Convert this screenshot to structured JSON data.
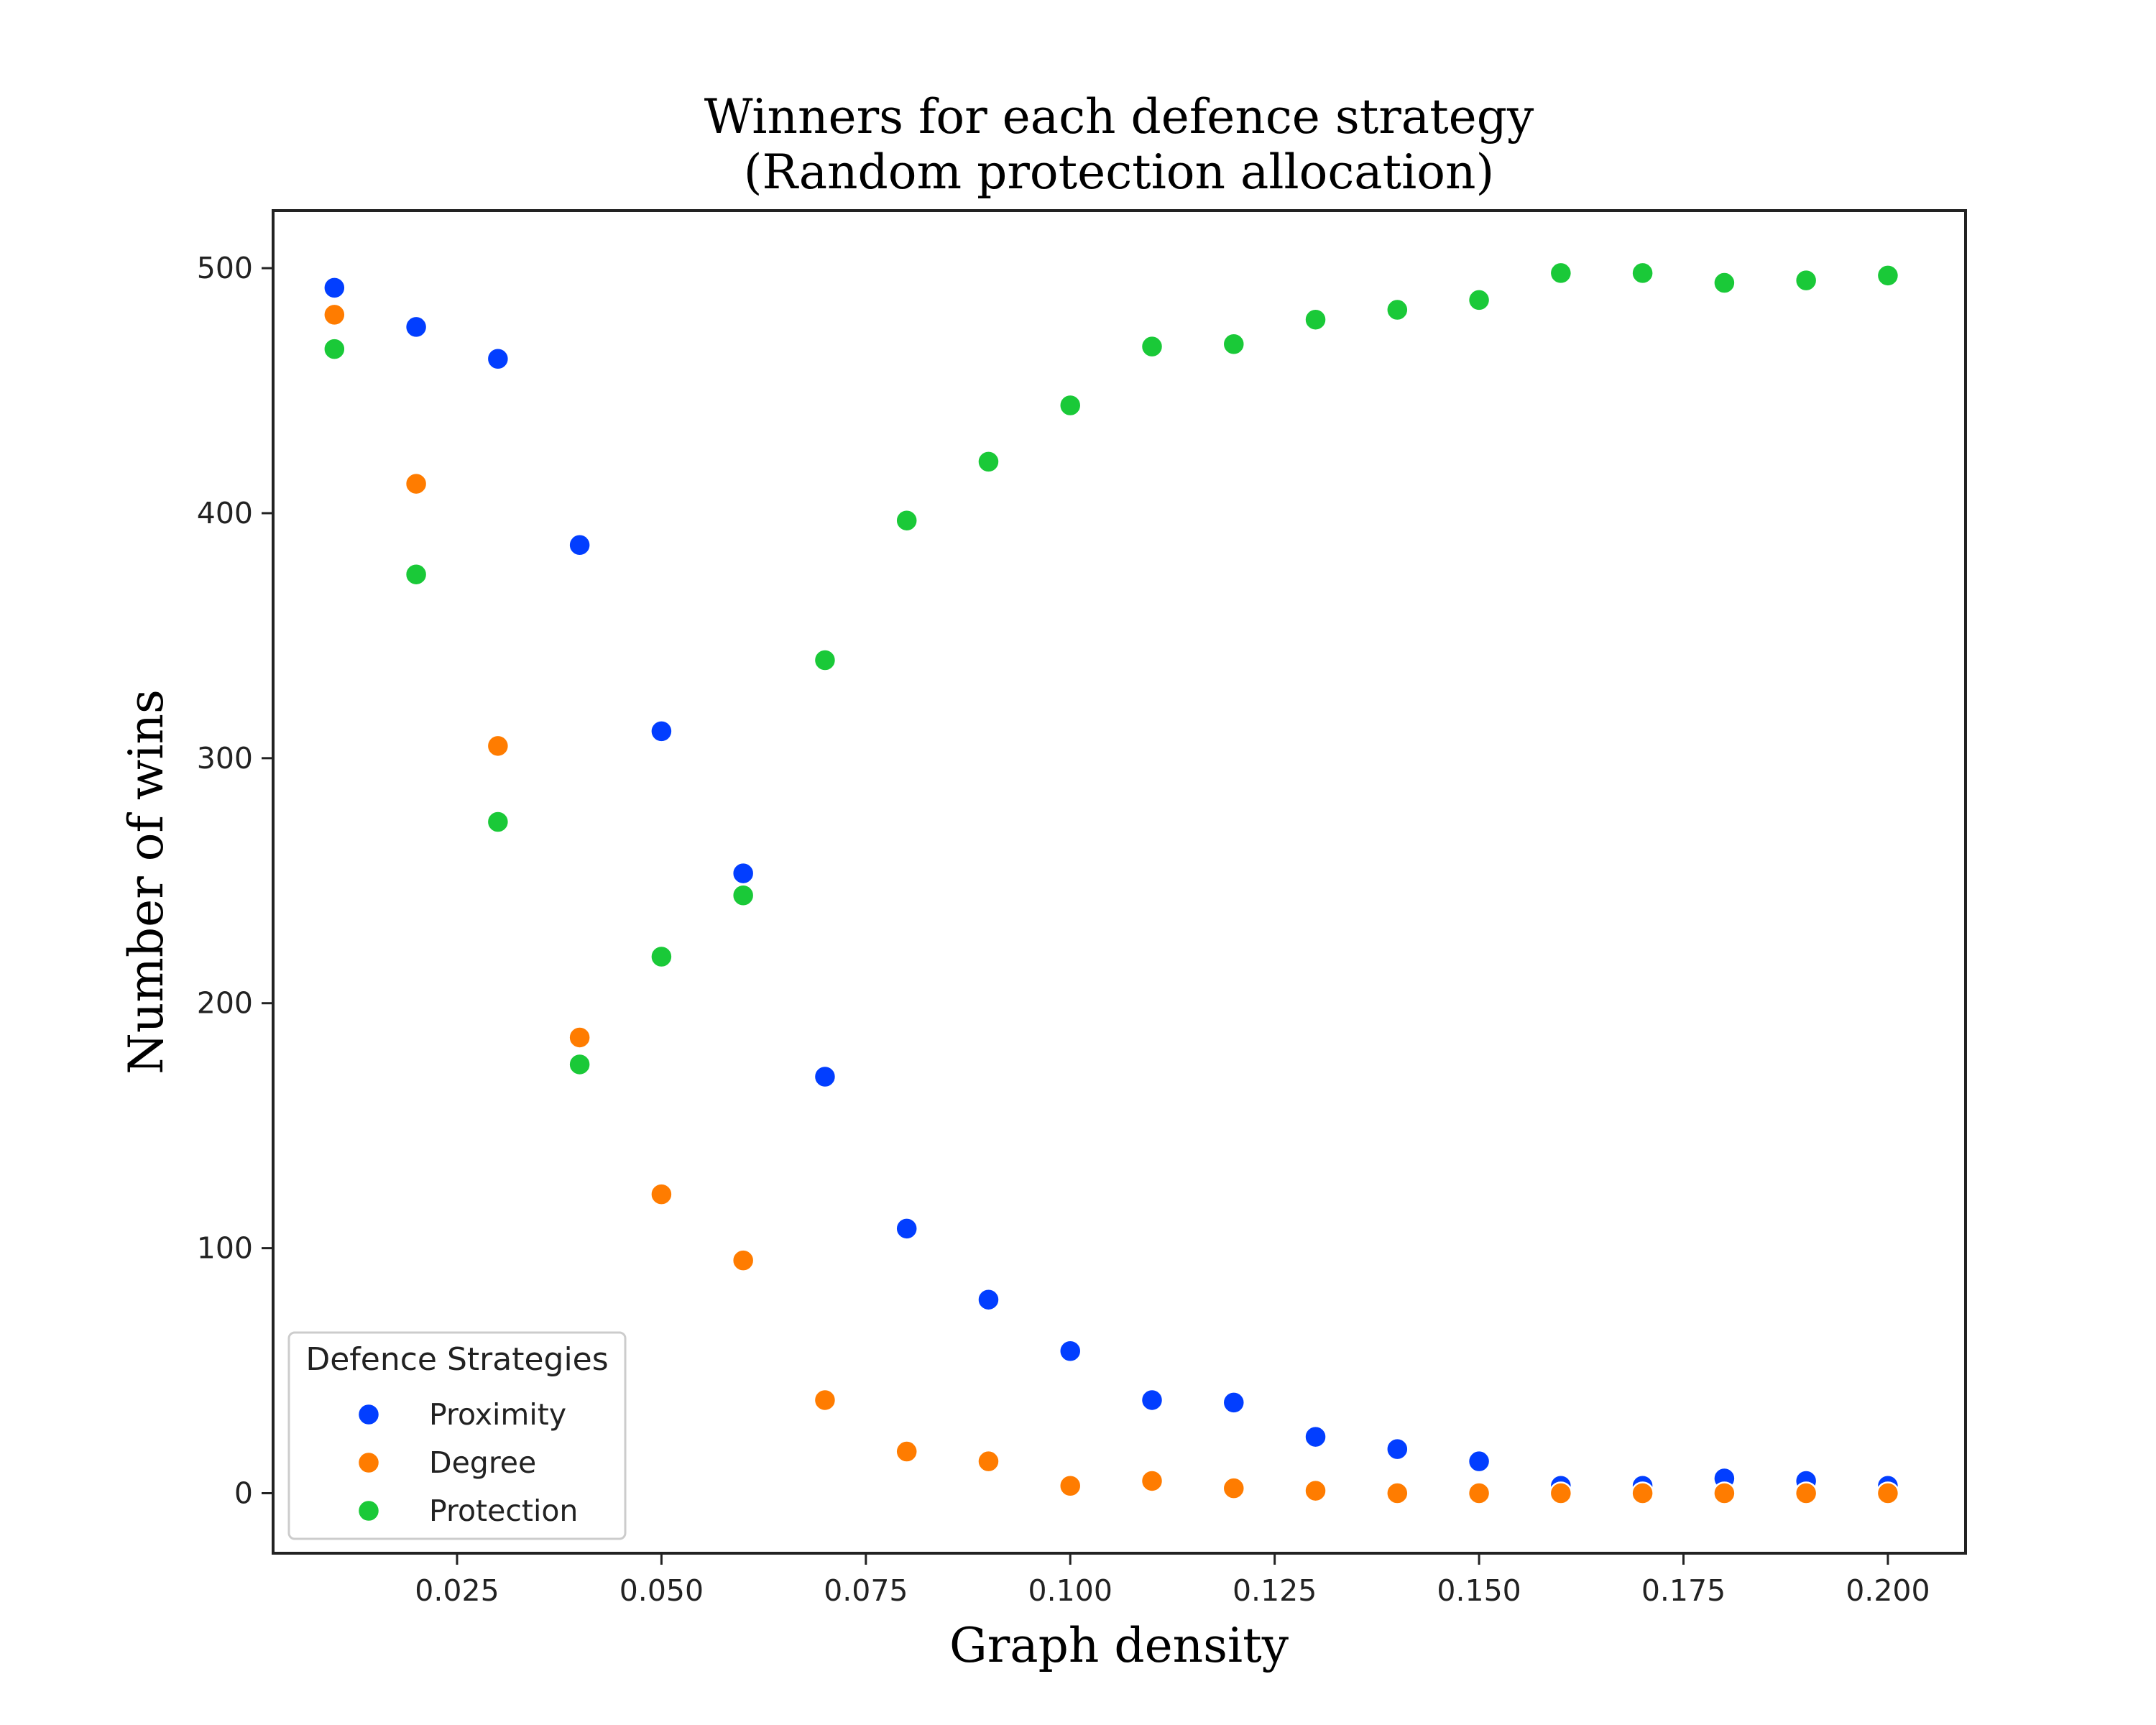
{
  "chart_data": {
    "type": "scatter",
    "title": [
      "Winners for each defence strategy",
      "(Random protection allocation)"
    ],
    "xlabel": "Graph density",
    "ylabel": "Number of wins",
    "xlim": [
      0.0025,
      0.2095
    ],
    "ylim": [
      -24.5,
      523.5
    ],
    "xticks": [
      0.025,
      0.05,
      0.075,
      0.1,
      0.125,
      0.15,
      0.175,
      0.2
    ],
    "xtick_labels": [
      "0.025",
      "0.050",
      "0.075",
      "0.100",
      "0.125",
      "0.150",
      "0.175",
      "0.200"
    ],
    "yticks": [
      0,
      100,
      200,
      300,
      400,
      500
    ],
    "ytick_labels": [
      "0",
      "100",
      "200",
      "300",
      "400",
      "500"
    ],
    "grid": false,
    "legend": {
      "title": "Defence Strategies",
      "placement": "lower-left"
    },
    "x": [
      0.01,
      0.02,
      0.03,
      0.04,
      0.05,
      0.06,
      0.07,
      0.08,
      0.09,
      0.1,
      0.11,
      0.12,
      0.13,
      0.14,
      0.15,
      0.16,
      0.17,
      0.18,
      0.19,
      0.2
    ],
    "series": [
      {
        "name": "Proximity",
        "color": "#023eff",
        "values": [
          492,
          476,
          463,
          387,
          311,
          253,
          170,
          108,
          79,
          58,
          38,
          37,
          23,
          18,
          13,
          3,
          3,
          6,
          5,
          3
        ]
      },
      {
        "name": "Degree",
        "color": "#ff7c00",
        "values": [
          481,
          412,
          305,
          186,
          122,
          95,
          38,
          17,
          13,
          3,
          5,
          2,
          1,
          0,
          0,
          0,
          0,
          0,
          0,
          0
        ]
      },
      {
        "name": "Protection",
        "color": "#1ac938",
        "values": [
          467,
          375,
          274,
          175,
          219,
          244,
          340,
          397,
          421,
          444,
          468,
          469,
          479,
          483,
          487,
          498,
          498,
          494,
          495,
          497
        ]
      }
    ]
  }
}
